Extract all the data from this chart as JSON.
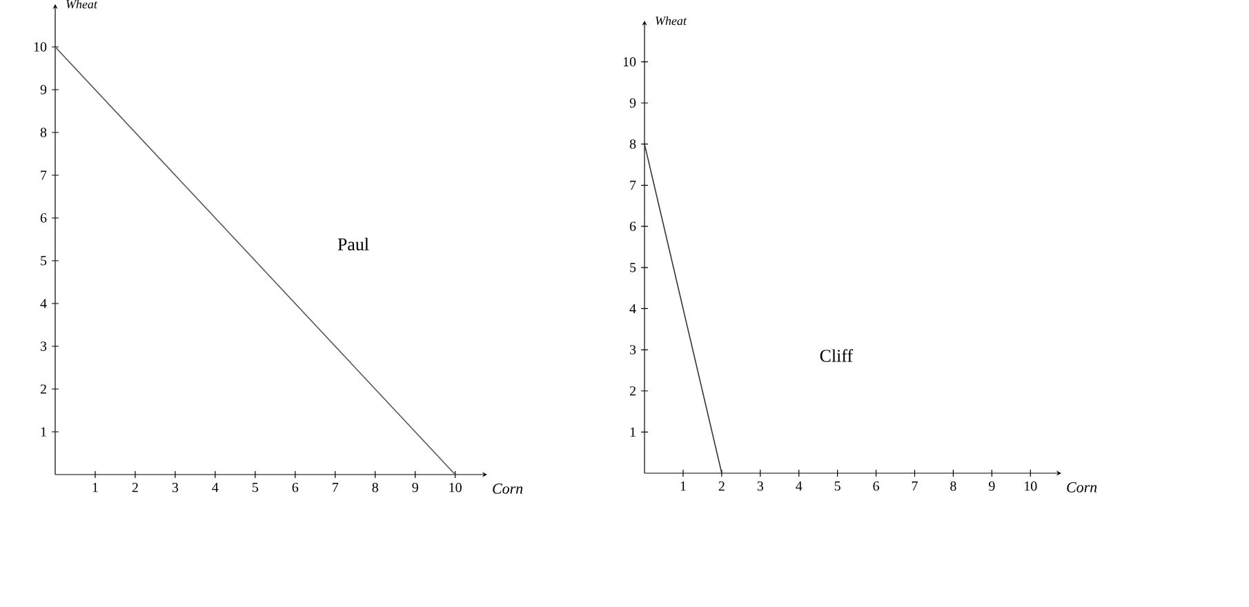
{
  "chart_data": [
    {
      "type": "line",
      "xlabel": "Corn",
      "ylabel": "Wheat",
      "xlim": [
        0,
        10.8
      ],
      "ylim": [
        0,
        11
      ],
      "xticks": [
        1,
        2,
        3,
        4,
        5,
        6,
        7,
        8,
        9,
        10
      ],
      "yticks": [
        1,
        2,
        3,
        4,
        5,
        6,
        7,
        8,
        9,
        10
      ],
      "x": [
        0,
        10
      ],
      "series": [
        {
          "color": "#555555",
          "values": [
            10,
            0
          ]
        }
      ],
      "annotations": [
        "Paul"
      ]
    },
    {
      "type": "line",
      "xlabel": "Corn",
      "ylabel": "Wheat",
      "xlim": [
        0,
        10.8
      ],
      "ylim": [
        0,
        11
      ],
      "xticks": [
        1,
        2,
        3,
        4,
        5,
        6,
        7,
        8,
        9,
        10
      ],
      "yticks": [
        1,
        2,
        3,
        4,
        5,
        6,
        7,
        8,
        9,
        10
      ],
      "x": [
        0,
        2
      ],
      "series": [
        {
          "color": "#333333",
          "values": [
            8,
            0
          ]
        }
      ],
      "annotations": [
        "Cliff"
      ]
    }
  ]
}
